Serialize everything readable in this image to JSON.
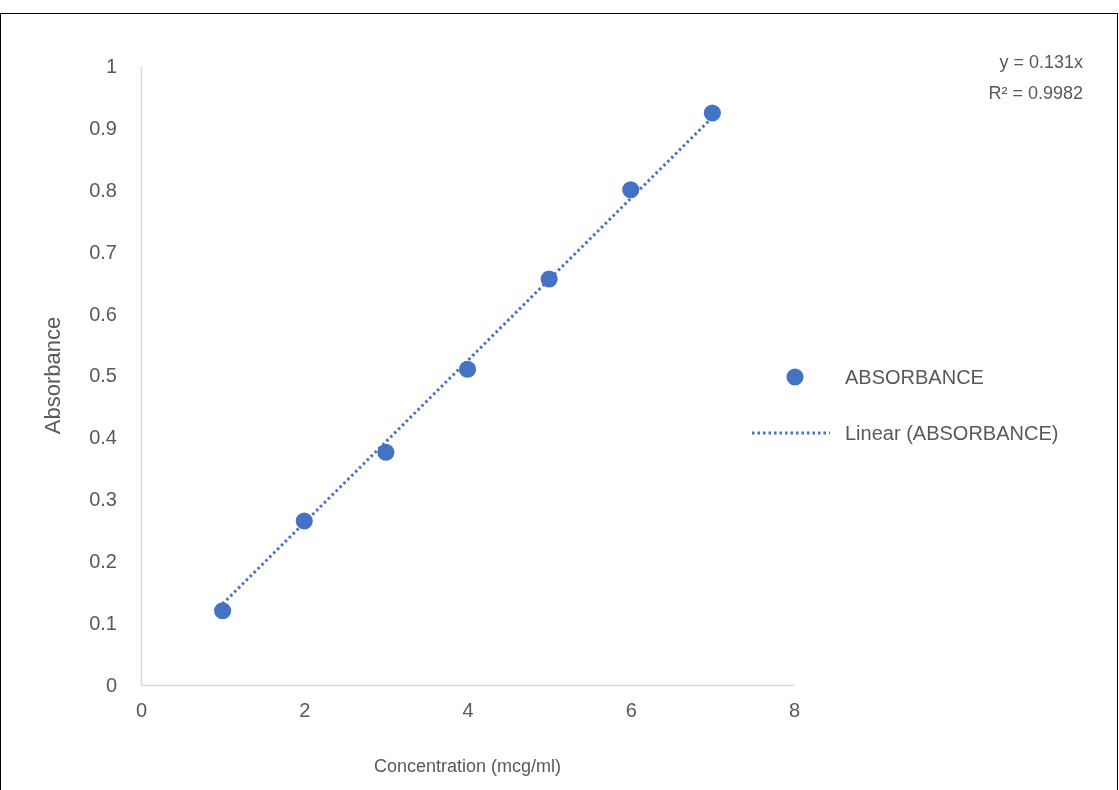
{
  "chart_data": {
    "type": "scatter",
    "xlabel": "Concentration (mcg/ml)",
    "ylabel": "Absorbance",
    "xlim": [
      0,
      8
    ],
    "xticks": [
      0,
      2,
      4,
      6,
      8
    ],
    "ylim": [
      0,
      1
    ],
    "yticks": [
      0,
      0.1,
      0.2,
      0.3,
      0.4,
      0.5,
      0.6,
      0.7,
      0.8,
      0.9,
      1
    ],
    "x": [
      1,
      2,
      3,
      4,
      5,
      6,
      7
    ],
    "legend": "right",
    "grid": false,
    "annotations": [
      "y = 0.131x",
      "R² = 0.9982"
    ],
    "series": [
      {
        "name": "ABSORBANCE",
        "color": "#4472c4",
        "marker": "circle",
        "values": [
          0.12,
          0.265,
          0.376,
          0.51,
          0.656,
          0.8,
          0.924
        ]
      },
      {
        "name": "Linear (ABSORBANCE)",
        "type": "line",
        "color": "#4472c4",
        "line_style": "dotted",
        "marker": "none",
        "x": [
          1,
          7
        ],
        "values": [
          0.131,
          0.917
        ]
      }
    ]
  }
}
